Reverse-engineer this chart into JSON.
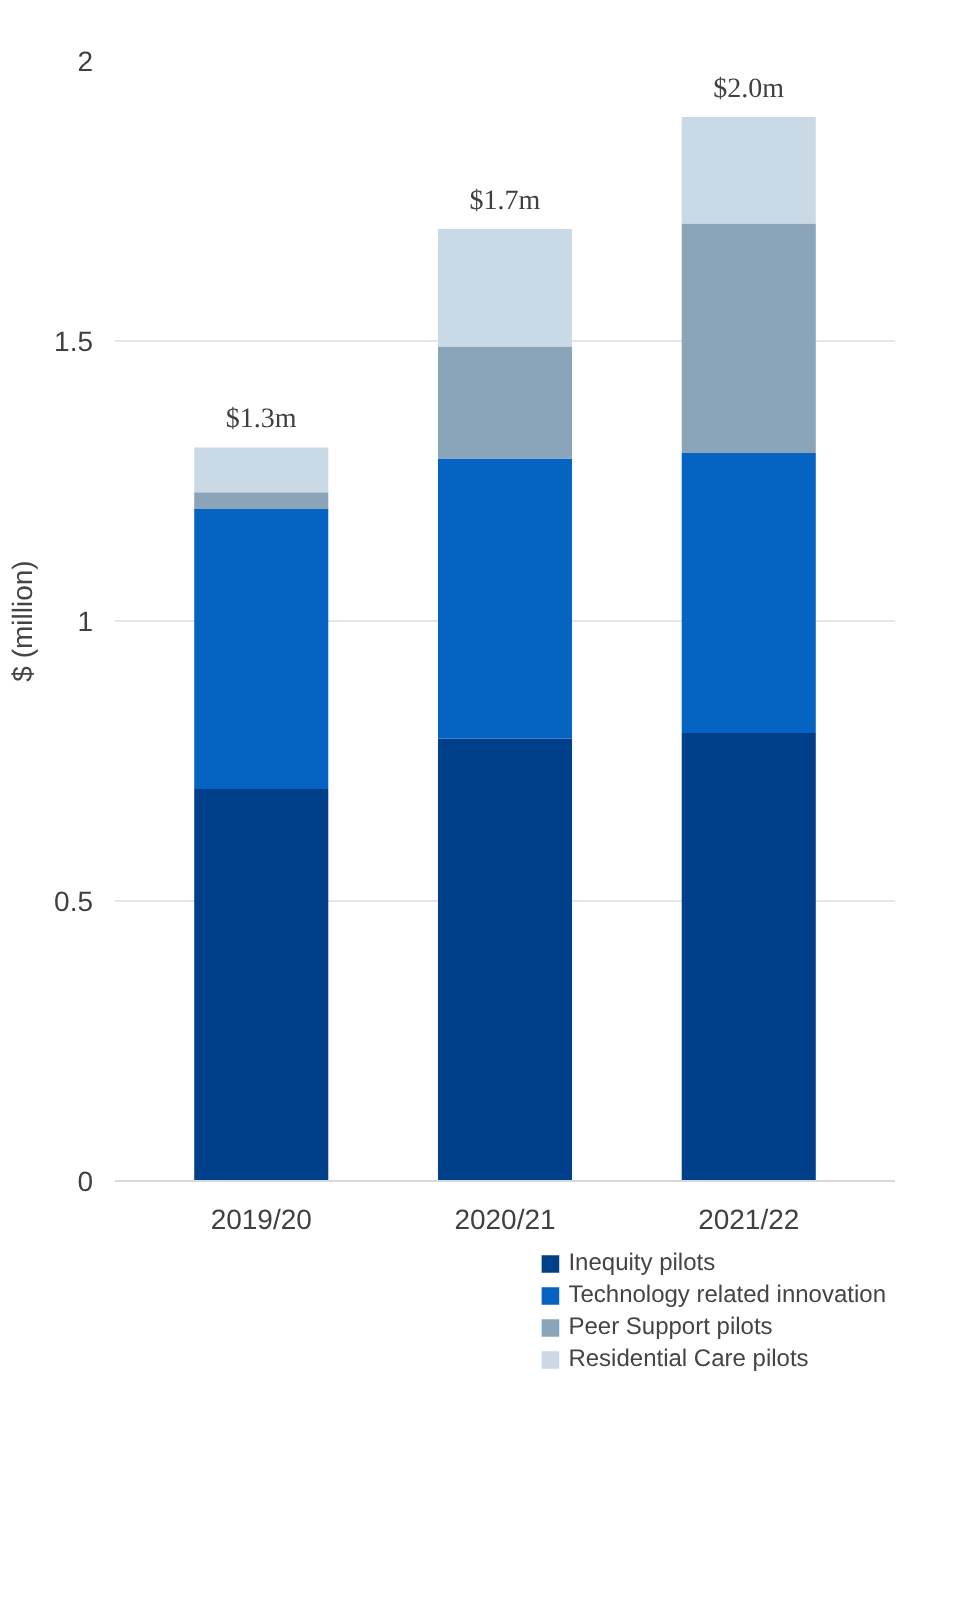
{
  "chart_data": {
    "type": "bar",
    "stacked": true,
    "ylabel": "$ (million)",
    "categories": [
      "2019/20",
      "2020/21",
      "2021/22"
    ],
    "series": [
      {
        "name": "Inequity pilots",
        "color": "#003f8a",
        "values": [
          0.7,
          0.79,
          0.8
        ]
      },
      {
        "name": "Technology related innovation",
        "color": "#0563c1",
        "values": [
          0.5,
          0.5,
          0.5
        ]
      },
      {
        "name": "Peer Support pilots",
        "color": "#8aa4ba",
        "values": [
          0.03,
          0.2,
          0.41
        ]
      },
      {
        "name": "Residential Care pilots",
        "color": "#c9d9e6",
        "values": [
          0.08,
          0.21,
          0.19
        ]
      }
    ],
    "totals": [
      "$1.3m",
      "$1.7m",
      "$2.0m"
    ],
    "ylim": [
      0,
      2
    ],
    "yticks": [
      0,
      0.5,
      1,
      1.5,
      2
    ],
    "grid": "y",
    "legend": "bottom"
  }
}
